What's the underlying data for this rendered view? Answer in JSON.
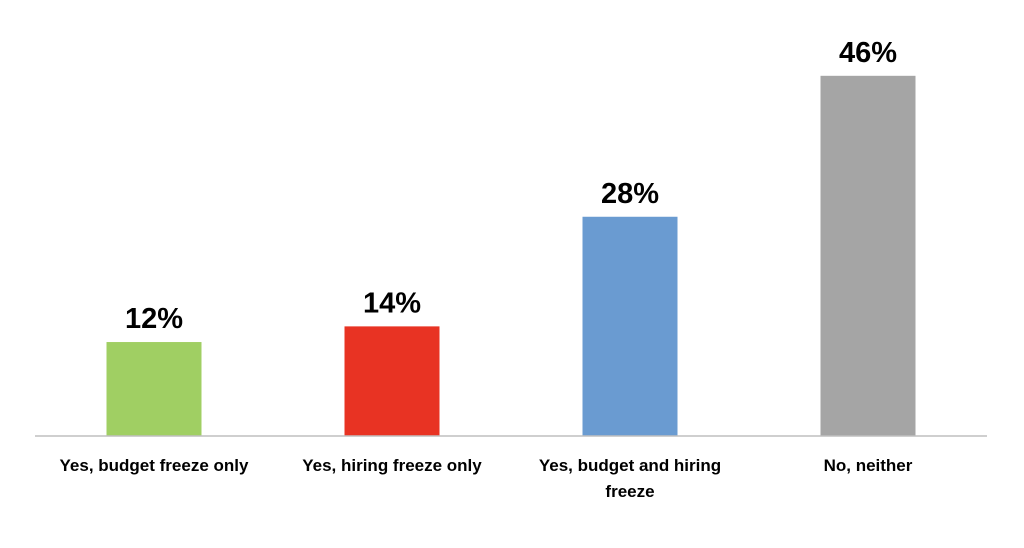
{
  "chart_data": {
    "type": "bar",
    "categories": [
      "Yes, budget freeze only",
      "Yes, hiring freeze only",
      "Yes, budget and hiring freeze",
      "No, neither"
    ],
    "values": [
      12,
      14,
      28,
      46
    ],
    "value_labels": [
      "12%",
      "14%",
      "28%",
      "46%"
    ],
    "colors": [
      "#a0cf63",
      "#e83323",
      "#6a9bd1",
      "#a5a5a5"
    ]
  }
}
